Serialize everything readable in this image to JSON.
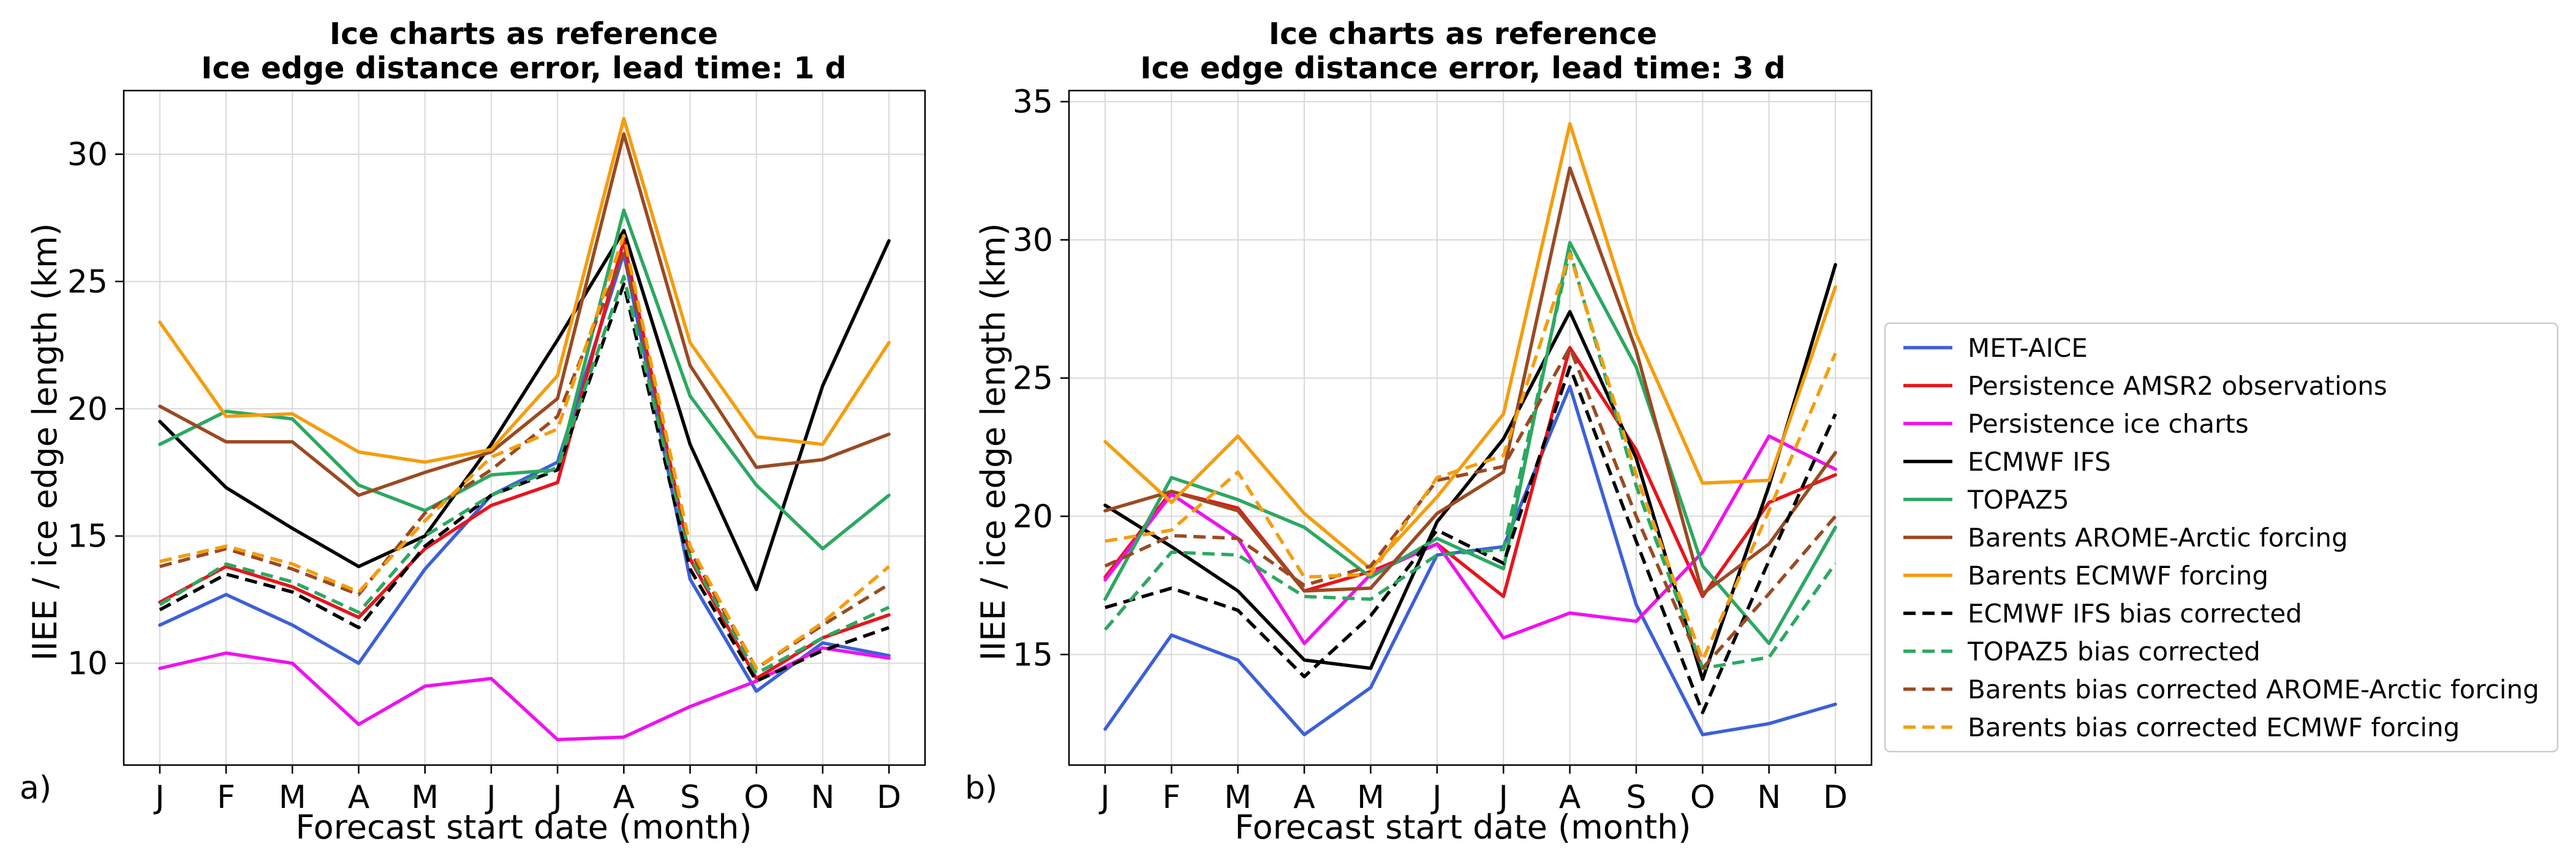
{
  "panel_labels": [
    "a)",
    "b)"
  ],
  "chart_data": [
    {
      "type": "line",
      "title": "Ice charts as reference",
      "subtitle": "Ice edge distance error, lead time: 1 d",
      "xlabel": "Forecast start date (month)",
      "ylabel": "IIEE / ice edge length (km)",
      "categories": [
        "J",
        "F",
        "M",
        "A",
        "M",
        "J",
        "J",
        "A",
        "S",
        "O",
        "N",
        "D"
      ],
      "ylim": [
        6,
        32.5
      ],
      "yticks": [
        10,
        15,
        20,
        25,
        30
      ],
      "grid": true,
      "series": [
        {
          "name": "MET-AICE",
          "color": "#3d60d8",
          "dash": false,
          "values": [
            11.5,
            12.7,
            11.5,
            10.0,
            13.7,
            16.6,
            17.9,
            26.1,
            13.3,
            8.9,
            10.8,
            10.3
          ]
        },
        {
          "name": "Persistence AMSR2 observations",
          "color": "#e8141c",
          "dash": false,
          "values": [
            12.4,
            13.8,
            13.0,
            11.8,
            14.5,
            16.2,
            17.1,
            26.6,
            14.1,
            9.4,
            11.0,
            11.9
          ]
        },
        {
          "name": "Persistence ice charts",
          "color": "#ee12ee",
          "dash": false,
          "values": [
            9.8,
            10.4,
            10.0,
            7.6,
            9.1,
            9.4,
            7.0,
            7.1,
            8.3,
            9.3,
            10.6,
            10.2
          ]
        },
        {
          "name": "ECMWF IFS",
          "color": "#000000",
          "dash": false,
          "values": [
            19.5,
            16.9,
            15.3,
            13.8,
            15.0,
            18.6,
            22.7,
            27.0,
            18.6,
            12.9,
            20.9,
            26.6
          ]
        },
        {
          "name": "TOPAZ5",
          "color": "#2ca861",
          "dash": false,
          "values": [
            18.6,
            19.9,
            19.6,
            17.0,
            16.0,
            17.4,
            17.6,
            27.8,
            20.5,
            17.0,
            14.5,
            16.6
          ]
        },
        {
          "name": "Barents AROME-Arctic forcing",
          "color": "#9a4a22",
          "dash": false,
          "values": [
            20.1,
            18.7,
            18.7,
            16.6,
            17.5,
            18.3,
            20.4,
            30.8,
            21.7,
            17.7,
            18.0,
            19.0
          ]
        },
        {
          "name": "Barents ECMWF forcing",
          "color": "#f59d0e",
          "dash": false,
          "values": [
            23.4,
            19.7,
            19.8,
            18.3,
            17.9,
            18.4,
            21.3,
            31.4,
            22.6,
            18.9,
            18.6,
            22.6
          ]
        },
        {
          "name": "ECMWF IFS bias corrected",
          "color": "#000000",
          "dash": true,
          "values": [
            12.1,
            13.5,
            12.8,
            11.4,
            14.6,
            16.6,
            17.6,
            24.9,
            13.7,
            9.3,
            10.5,
            11.4
          ]
        },
        {
          "name": "TOPAZ5 bias corrected",
          "color": "#2ca861",
          "dash": true,
          "values": [
            12.3,
            13.9,
            13.2,
            12.0,
            15.0,
            16.6,
            17.7,
            25.2,
            14.2,
            9.6,
            11.0,
            12.2
          ]
        },
        {
          "name": "Barents bias corrected AROME-Arctic forcing",
          "color": "#9a4a22",
          "dash": true,
          "values": [
            13.8,
            14.5,
            13.7,
            12.7,
            15.9,
            17.6,
            19.7,
            26.1,
            14.4,
            9.8,
            11.5,
            13.1
          ]
        },
        {
          "name": "Barents bias corrected ECMWF forcing",
          "color": "#f59d0e",
          "dash": true,
          "values": [
            14.0,
            14.6,
            13.9,
            12.8,
            15.6,
            18.1,
            19.2,
            26.8,
            14.6,
            9.8,
            11.6,
            13.8
          ]
        }
      ]
    },
    {
      "type": "line",
      "title": "Ice charts as reference",
      "subtitle": "Ice edge distance error, lead time: 3 d",
      "xlabel": "Forecast start date (month)",
      "ylabel": "IIEE / ice edge length (km)",
      "categories": [
        "J",
        "F",
        "M",
        "A",
        "M",
        "J",
        "J",
        "A",
        "S",
        "O",
        "N",
        "D"
      ],
      "ylim": [
        11.0,
        35.4
      ],
      "yticks": [
        15,
        20,
        25,
        30,
        35
      ],
      "grid": true,
      "series": [
        {
          "name": "MET-AICE",
          "color": "#3d60d8",
          "dash": false,
          "values": [
            12.3,
            15.7,
            14.8,
            12.1,
            13.8,
            18.6,
            18.9,
            24.7,
            16.8,
            12.1,
            12.5,
            13.2
          ]
        },
        {
          "name": "Persistence AMSR2 observations",
          "color": "#e8141c",
          "dash": false,
          "values": [
            17.8,
            20.9,
            20.3,
            17.3,
            18.0,
            19.0,
            17.1,
            26.1,
            22.4,
            17.1,
            20.5,
            21.5
          ]
        },
        {
          "name": "Persistence ice charts",
          "color": "#ee12ee",
          "dash": false,
          "values": [
            17.7,
            20.8,
            19.2,
            15.4,
            17.9,
            19.0,
            15.6,
            16.5,
            16.2,
            18.7,
            22.9,
            21.7
          ]
        },
        {
          "name": "ECMWF IFS",
          "color": "#000000",
          "dash": false,
          "values": [
            20.4,
            18.9,
            17.3,
            14.8,
            14.5,
            19.8,
            22.8,
            27.4,
            22.1,
            14.1,
            21.1,
            29.1
          ]
        },
        {
          "name": "TOPAZ5",
          "color": "#2ca861",
          "dash": false,
          "values": [
            17.0,
            21.4,
            20.6,
            19.6,
            17.8,
            19.2,
            18.1,
            29.9,
            25.4,
            18.2,
            15.4,
            19.6
          ]
        },
        {
          "name": "Barents AROME-Arctic forcing",
          "color": "#9a4a22",
          "dash": false,
          "values": [
            20.2,
            20.9,
            20.2,
            17.3,
            17.4,
            20.1,
            21.6,
            32.6,
            26.0,
            17.2,
            19.0,
            22.3
          ]
        },
        {
          "name": "Barents ECMWF forcing",
          "color": "#f59d0e",
          "dash": false,
          "values": [
            22.7,
            20.5,
            22.9,
            20.1,
            18.1,
            20.7,
            23.7,
            34.2,
            26.6,
            21.2,
            21.3,
            28.3
          ]
        },
        {
          "name": "ECMWF IFS bias corrected",
          "color": "#000000",
          "dash": true,
          "values": [
            16.7,
            17.4,
            16.6,
            14.2,
            16.4,
            19.5,
            18.3,
            25.4,
            19.1,
            12.9,
            18.4,
            23.7
          ]
        },
        {
          "name": "TOPAZ5 bias corrected",
          "color": "#2ca861",
          "dash": true,
          "values": [
            15.9,
            18.7,
            18.6,
            17.1,
            17.0,
            18.6,
            18.8,
            29.6,
            21.1,
            14.5,
            14.9,
            18.3
          ]
        },
        {
          "name": "Barents bias corrected AROME-Arctic forcing",
          "color": "#9a4a22",
          "dash": true,
          "values": [
            18.2,
            19.3,
            19.2,
            17.5,
            18.2,
            21.3,
            21.8,
            26.1,
            20.0,
            14.5,
            17.2,
            20.0
          ]
        },
        {
          "name": "Barents bias corrected ECMWF forcing",
          "color": "#f59d0e",
          "dash": true,
          "values": [
            19.1,
            19.5,
            21.6,
            17.8,
            17.9,
            21.4,
            22.2,
            29.5,
            21.5,
            14.8,
            20.2,
            25.9
          ]
        }
      ]
    }
  ]
}
